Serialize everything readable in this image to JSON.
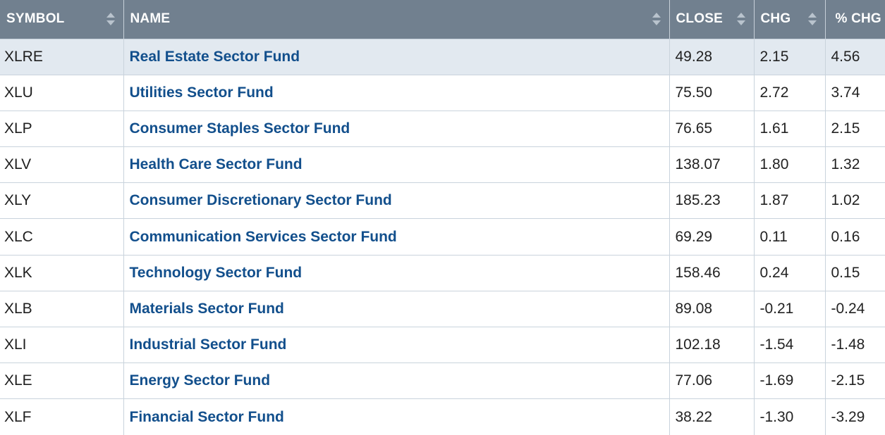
{
  "columns": {
    "symbol": "SYMBOL",
    "name": "NAME",
    "close": "CLOSE",
    "chg": "CHG",
    "pct_chg": "% CHG"
  },
  "rows": [
    {
      "symbol": "XLRE",
      "name": "Real Estate Sector Fund",
      "close": "49.28",
      "chg": "2.15",
      "pct_chg": "4.56"
    },
    {
      "symbol": "XLU",
      "name": "Utilities Sector Fund",
      "close": "75.50",
      "chg": "2.72",
      "pct_chg": "3.74"
    },
    {
      "symbol": "XLP",
      "name": "Consumer Staples Sector Fund",
      "close": "76.65",
      "chg": "1.61",
      "pct_chg": "2.15"
    },
    {
      "symbol": "XLV",
      "name": "Health Care Sector Fund",
      "close": "138.07",
      "chg": "1.80",
      "pct_chg": "1.32"
    },
    {
      "symbol": "XLY",
      "name": "Consumer Discretionary Sector Fund",
      "close": "185.23",
      "chg": "1.87",
      "pct_chg": "1.02"
    },
    {
      "symbol": "XLC",
      "name": "Communication Services Sector Fund",
      "close": "69.29",
      "chg": "0.11",
      "pct_chg": "0.16"
    },
    {
      "symbol": "XLK",
      "name": "Technology Sector Fund",
      "close": "158.46",
      "chg": "0.24",
      "pct_chg": "0.15"
    },
    {
      "symbol": "XLB",
      "name": "Materials Sector Fund",
      "close": "89.08",
      "chg": "-0.21",
      "pct_chg": "-0.24"
    },
    {
      "symbol": "XLI",
      "name": "Industrial Sector Fund",
      "close": "102.18",
      "chg": "-1.54",
      "pct_chg": "-1.48"
    },
    {
      "symbol": "XLE",
      "name": "Energy Sector Fund",
      "close": "77.06",
      "chg": "-1.69",
      "pct_chg": "-2.15"
    },
    {
      "symbol": "XLF",
      "name": "Financial Sector Fund",
      "close": "38.22",
      "chg": "-1.30",
      "pct_chg": "-3.29"
    }
  ],
  "colors": {
    "header_bg": "#71808f",
    "header_text": "#ffffff",
    "highlight_row": "#e2e9f0",
    "link": "#124f8c",
    "grid": "#c9d3dc"
  },
  "icons": {
    "sort": "sort-icon"
  }
}
